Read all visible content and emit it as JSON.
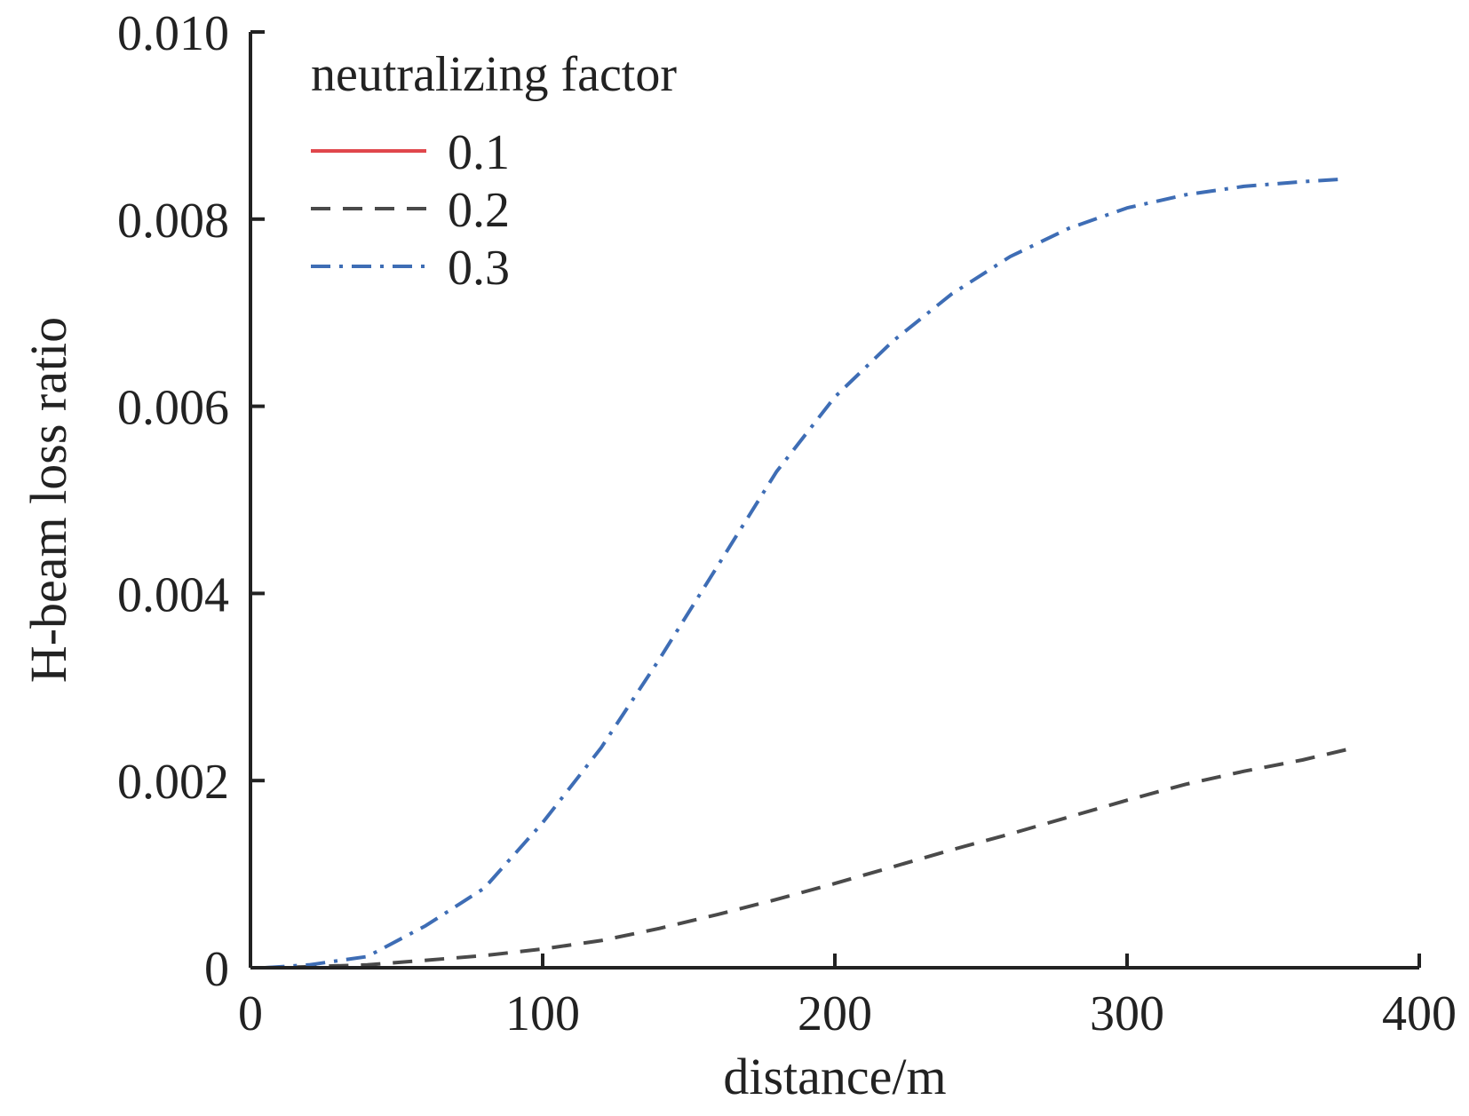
{
  "chart_data": {
    "type": "line",
    "title": "",
    "xlabel": "distance/m",
    "ylabel": "H-beam loss ratio",
    "xlim": [
      0,
      400
    ],
    "ylim": [
      0,
      0.01
    ],
    "xticks": [
      "0",
      "100",
      "200",
      "300",
      "400"
    ],
    "yticks": [
      "0",
      "0.002",
      "0.004",
      "0.006",
      "0.008",
      "0.010"
    ],
    "grid": false,
    "legend": {
      "title": "neutralizing factor",
      "position": "top-left"
    },
    "series": [
      {
        "name": "0.1",
        "color": "#e0474c",
        "style": "solid",
        "x": [
          5,
          50,
          100,
          150,
          200,
          250,
          300,
          350,
          375
        ],
        "y": [
          0,
          0,
          0,
          0,
          0,
          0,
          0,
          0,
          0
        ]
      },
      {
        "name": "0.2",
        "color": "#4a4a4a",
        "style": "dashed",
        "x": [
          5,
          20,
          40,
          60,
          80,
          100,
          120,
          140,
          160,
          180,
          200,
          220,
          240,
          260,
          280,
          300,
          320,
          340,
          360,
          375
        ],
        "y": [
          0,
          1e-05,
          3e-05,
          8e-05,
          0.00013,
          0.0002,
          0.00029,
          0.00042,
          0.00057,
          0.00073,
          0.0009,
          0.00108,
          0.00126,
          0.00143,
          0.00161,
          0.00179,
          0.00196,
          0.0021,
          0.00222,
          0.00233
        ]
      },
      {
        "name": "0.3",
        "color": "#3e6db5",
        "style": "dashdot",
        "x": [
          5,
          20,
          40,
          60,
          80,
          100,
          120,
          140,
          160,
          180,
          200,
          220,
          240,
          260,
          280,
          300,
          320,
          340,
          360,
          375
        ],
        "y": [
          0,
          3e-05,
          0.00012,
          0.00045,
          0.00085,
          0.00155,
          0.00235,
          0.0033,
          0.0043,
          0.0053,
          0.0061,
          0.0067,
          0.0072,
          0.0076,
          0.0079,
          0.00812,
          0.00826,
          0.00835,
          0.0084,
          0.00843
        ]
      }
    ]
  }
}
